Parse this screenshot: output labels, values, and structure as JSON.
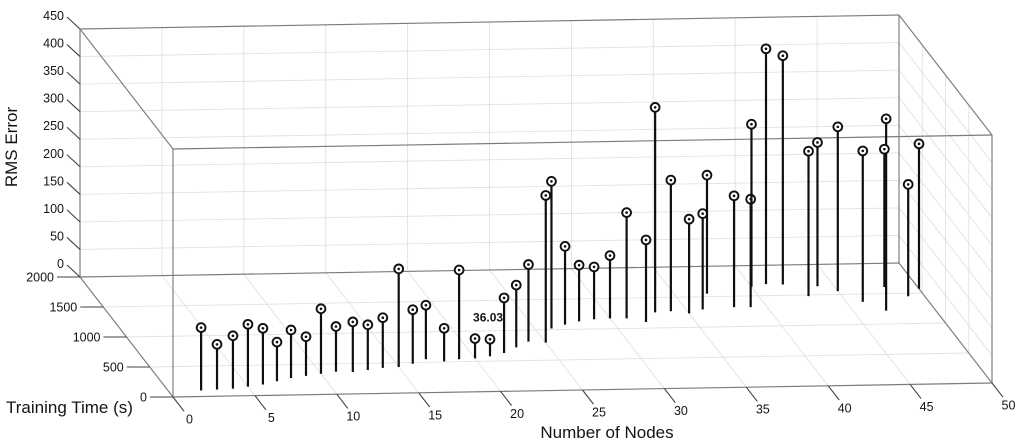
{
  "figure": {
    "background": "#ffffff",
    "annotation": {
      "text": "36.03",
      "at_node": 20
    }
  },
  "colors": {
    "background": "#ffffff",
    "stem": "#0f0f0f",
    "marker_fill": "#ffffff",
    "marker_ring": "#0f0f0f",
    "box_edge": "#7b7b7b",
    "grid": "#e5e0e0",
    "tick": "#404040",
    "text": "#141414"
  },
  "chart_data": {
    "type": "scatter",
    "subtype": "stem3d",
    "title": "",
    "xlabel": "Number of Nodes",
    "ylabel": "Training Time (s)",
    "zlabel": "RMS Error",
    "x_range": [
      0,
      50
    ],
    "y_range": [
      0,
      2000
    ],
    "z_range": [
      0,
      450
    ],
    "x_ticks": [
      0,
      5,
      10,
      15,
      20,
      25,
      30,
      35,
      40,
      45,
      50
    ],
    "y_ticks": [
      0,
      500,
      1000,
      1500,
      2000
    ],
    "z_ticks": [
      0,
      50,
      100,
      150,
      200,
      250,
      300,
      350,
      400,
      450
    ],
    "grid": true,
    "legend_position": "none",
    "annotation": {
      "text": "36.03",
      "at_node": 20
    },
    "columns": [
      "nodes",
      "training_time_s",
      "rms_error"
    ],
    "points": [
      [
        2,
        100,
        114
      ],
      [
        3,
        110,
        82
      ],
      [
        4,
        120,
        96
      ],
      [
        5,
        150,
        113
      ],
      [
        6,
        180,
        102
      ],
      [
        7,
        230,
        71
      ],
      [
        8,
        280,
        87
      ],
      [
        9,
        310,
        71
      ],
      [
        10,
        340,
        118
      ],
      [
        11,
        370,
        82
      ],
      [
        12,
        360,
        91
      ],
      [
        13,
        390,
        82
      ],
      [
        14,
        420,
        91
      ],
      [
        15,
        430,
        178
      ],
      [
        16,
        480,
        98
      ],
      [
        17,
        550,
        98
      ],
      [
        18,
        510,
        60
      ],
      [
        19,
        540,
        162
      ],
      [
        20,
        550,
        36.03
      ],
      [
        21,
        580,
        31
      ],
      [
        22,
        630,
        100
      ],
      [
        23,
        720,
        113
      ],
      [
        24,
        810,
        140
      ],
      [
        25,
        790,
        267
      ],
      [
        26,
        1020,
        267
      ],
      [
        27,
        1080,
        142
      ],
      [
        28,
        1130,
        102
      ],
      [
        29,
        1160,
        95
      ],
      [
        30,
        1170,
        114
      ],
      [
        31,
        1165,
        192
      ],
      [
        32,
        1100,
        149
      ],
      [
        33,
        1256,
        372
      ],
      [
        34,
        1270,
        238
      ],
      [
        35,
        1230,
        171
      ],
      [
        36,
        1290,
        174
      ],
      [
        37,
        1550,
        215
      ],
      [
        38,
        1320,
        202
      ],
      [
        39,
        1315,
        196
      ],
      [
        40,
        1650,
        295
      ],
      [
        41,
        1690,
        427
      ],
      [
        42,
        1680,
        415
      ],
      [
        43,
        1480,
        263
      ],
      [
        44,
        1640,
        261
      ],
      [
        45,
        1555,
        298
      ],
      [
        46,
        1370,
        274
      ],
      [
        47,
        1220,
        348
      ],
      [
        48,
        1610,
        250
      ],
      [
        49,
        1450,
        203
      ],
      [
        50,
        1570,
        263
      ]
    ]
  }
}
